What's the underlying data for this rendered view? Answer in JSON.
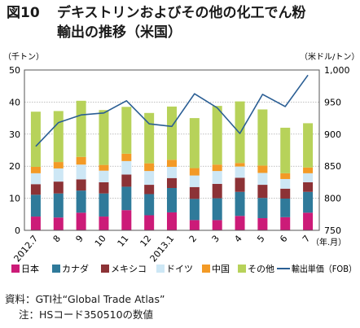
{
  "title": {
    "figure_number": "図10",
    "line1": "デキストリンおよびその他の化工でん粉",
    "line2": "輸出の推移（米国）"
  },
  "notes": {
    "source": "資料：GTI社“Global Trade Atlas”",
    "note": "注：HSコード350510の数値"
  },
  "chart_data": {
    "type": "bar",
    "stacked": true,
    "categories": [
      "2012.7",
      "8",
      "9",
      "10",
      "11",
      "12",
      "2013.1",
      "2",
      "3",
      "4",
      "5",
      "6",
      "7"
    ],
    "x_unit": "（年.月）",
    "left_axis": {
      "unit": "（千トン）",
      "min": 0,
      "max": 50,
      "ticks": [
        0,
        10,
        20,
        30,
        40,
        50
      ]
    },
    "right_axis": {
      "unit": "（米ドル/トン）",
      "min": 750,
      "max": 1000,
      "ticks": [
        "750",
        "800",
        "850",
        "900",
        "950",
        "1,000"
      ]
    },
    "grid": true,
    "legend_position": "bottom",
    "series": [
      {
        "name": "日本",
        "color": "#cc1b78",
        "values": [
          4.3,
          4.0,
          5.5,
          4.3,
          6.3,
          4.7,
          5.6,
          3.2,
          3.2,
          4.5,
          3.8,
          4.1,
          5.5
        ]
      },
      {
        "name": "カナダ",
        "color": "#2f7a9a",
        "values": [
          6.8,
          7.5,
          6.9,
          7.2,
          7.3,
          6.6,
          7.6,
          6.6,
          6.8,
          7.5,
          6.3,
          5.8,
          6.5
        ]
      },
      {
        "name": "メキシコ",
        "color": "#8c3236",
        "values": [
          3.3,
          3.7,
          3.5,
          3.5,
          3.8,
          2.9,
          3.1,
          3.7,
          4.5,
          4.4,
          4.1,
          3.1,
          3.0
        ]
      },
      {
        "name": "ドイツ",
        "color": "#cde7f5",
        "values": [
          3.4,
          4.1,
          4.6,
          3.6,
          4.2,
          4.3,
          3.5,
          3.6,
          4.0,
          3.5,
          3.7,
          3.0,
          2.8
        ]
      },
      {
        "name": "中国",
        "color": "#f39a26",
        "values": [
          2.0,
          2.0,
          2.4,
          1.8,
          2.3,
          2.4,
          2.2,
          2.3,
          2.0,
          1.1,
          2.3,
          1.8,
          1.8
        ]
      },
      {
        "name": "その他",
        "color": "#b7d25a",
        "values": [
          17.2,
          15.9,
          17.5,
          17.1,
          14.6,
          15.7,
          16.6,
          15.6,
          18.3,
          19.2,
          17.5,
          14.2,
          13.8
        ]
      }
    ],
    "line_series": {
      "name": "輸出単価（FOB）",
      "color": "#2a5e94",
      "axis": "right",
      "values": [
        881,
        918,
        930,
        933,
        952,
        916,
        912,
        963,
        941,
        901,
        962,
        943,
        992
      ]
    }
  }
}
